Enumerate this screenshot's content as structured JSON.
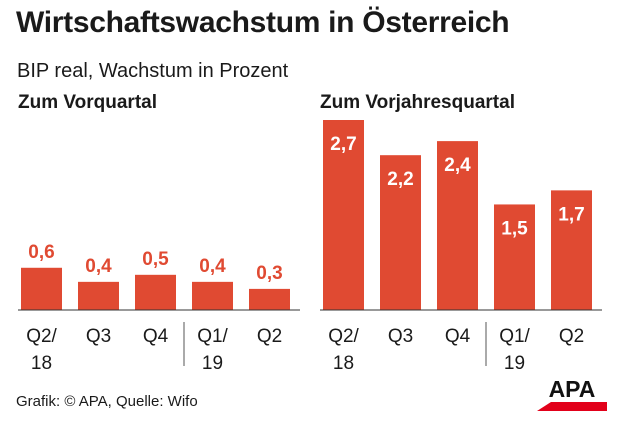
{
  "title": "Wirtschaftswachstum in Österreich",
  "subtitle": "BIP real, Wachstum in Prozent",
  "footer": "Grafik: © APA, Quelle: Wifo",
  "logo_text": "APA",
  "colors": {
    "bar": "#e04a32",
    "label_outside": "#e04a32",
    "label_inside": "#ffffff",
    "text": "#1a1a1a",
    "axis": "#333333",
    "logo_red": "#e2001a"
  },
  "chart_data": [
    {
      "type": "bar",
      "title": "Zum Vorquartal",
      "categories": [
        [
          "Q2/",
          "18"
        ],
        [
          "Q3"
        ],
        [
          "Q4"
        ],
        [
          "Q1/",
          "19"
        ],
        [
          "Q2"
        ]
      ],
      "values": [
        0.6,
        0.4,
        0.5,
        0.4,
        0.3
      ],
      "value_labels": [
        "0,6",
        "0,4",
        "0,5",
        "0,4",
        "0,3"
      ],
      "label_position": "above",
      "ylim": [
        0,
        2.7
      ],
      "grid": false,
      "year_separator_before_index": 3
    },
    {
      "type": "bar",
      "title": "Zum Vorjahresquartal",
      "categories": [
        [
          "Q2/",
          "18"
        ],
        [
          "Q3"
        ],
        [
          "Q4"
        ],
        [
          "Q1/",
          "19"
        ],
        [
          "Q2"
        ]
      ],
      "values": [
        2.7,
        2.2,
        2.4,
        1.5,
        1.7
      ],
      "value_labels": [
        "2,7",
        "2,2",
        "2,4",
        "1,5",
        "1,7"
      ],
      "label_position": "inside",
      "ylim": [
        0,
        2.7
      ],
      "grid": false,
      "year_separator_before_index": 3
    }
  ]
}
